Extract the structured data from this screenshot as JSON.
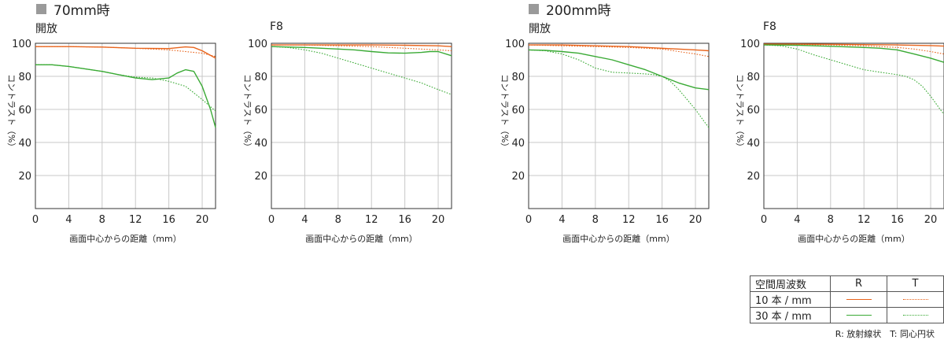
{
  "groups": [
    {
      "label": "70mm時"
    },
    {
      "label": "200mm時"
    }
  ],
  "colors": {
    "r10": "#e8641c",
    "t10": "#e8641c",
    "r30": "#3aaa35",
    "t30": "#3aaa35"
  },
  "axis": {
    "ylabel": "コントラスト（%）",
    "xlabel": "画面中心からの距離（mm）",
    "yticks": [
      "20",
      "40",
      "60",
      "80",
      "100"
    ],
    "xticks": [
      "0",
      "4",
      "8",
      "12",
      "16",
      "20"
    ]
  },
  "chart_data": [
    {
      "type": "line",
      "group": "70mm時",
      "title": "開放",
      "xlabel": "画面中心からの距離（mm）",
      "ylabel": "コントラスト（%）",
      "xlim": [
        0,
        21.6
      ],
      "ylim": [
        0,
        100
      ],
      "grid": true,
      "series": [
        {
          "name": "10本/mm R",
          "style": "solid",
          "color": "#e8641c",
          "x": [
            0,
            4,
            8,
            12,
            16,
            18,
            19,
            20,
            21.6
          ],
          "y": [
            98,
            98,
            97.7,
            97,
            96.8,
            97.8,
            97.5,
            95.5,
            91
          ]
        },
        {
          "name": "10本/mm T",
          "style": "dotted",
          "color": "#e8641c",
          "x": [
            0,
            4,
            8,
            12,
            16,
            18,
            20,
            21.6
          ],
          "y": [
            98,
            98,
            97.7,
            97,
            96,
            95,
            94,
            92
          ]
        },
        {
          "name": "30本/mm R",
          "style": "solid",
          "color": "#3aaa35",
          "x": [
            0,
            2,
            4,
            6,
            8,
            10,
            12,
            14,
            16,
            17,
            18,
            19,
            20,
            21,
            21.6
          ],
          "y": [
            87,
            87,
            86,
            84.5,
            83,
            81,
            79,
            78,
            79,
            82,
            84,
            83,
            74,
            60,
            49
          ]
        },
        {
          "name": "30本/mm T",
          "style": "dotted",
          "color": "#3aaa35",
          "x": [
            0,
            2,
            4,
            6,
            8,
            10,
            12,
            14,
            16,
            18,
            20,
            21.6
          ],
          "y": [
            87,
            87,
            86,
            84.5,
            83,
            81,
            79.5,
            79,
            77,
            74,
            66,
            59
          ]
        }
      ]
    },
    {
      "type": "line",
      "group": "70mm時",
      "title": "F8",
      "xlabel": "画面中心からの距離（mm）",
      "ylabel": "コントラスト（%）",
      "xlim": [
        0,
        21.6
      ],
      "ylim": [
        0,
        100
      ],
      "grid": true,
      "series": [
        {
          "name": "10本/mm R",
          "style": "solid",
          "color": "#e8641c",
          "x": [
            0,
            4,
            8,
            12,
            16,
            20,
            21.6
          ],
          "y": [
            99,
            99,
            99,
            99,
            98.8,
            98.5,
            98
          ]
        },
        {
          "name": "10本/mm T",
          "style": "dotted",
          "color": "#e8641c",
          "x": [
            0,
            4,
            8,
            12,
            16,
            20,
            21.6
          ],
          "y": [
            99,
            99,
            98.5,
            98,
            97,
            96,
            95.5
          ]
        },
        {
          "name": "30本/mm R",
          "style": "solid",
          "color": "#3aaa35",
          "x": [
            0,
            4,
            8,
            10,
            12,
            14,
            16,
            18,
            19,
            20,
            21.6
          ],
          "y": [
            98,
            97.5,
            96.5,
            96,
            95,
            94.2,
            94,
            94.5,
            95,
            95,
            92.5
          ]
        },
        {
          "name": "30本/mm T",
          "style": "dotted",
          "color": "#3aaa35",
          "x": [
            0,
            2,
            4,
            6,
            8,
            10,
            12,
            14,
            16,
            18,
            20,
            21.6
          ],
          "y": [
            98,
            97.5,
            96,
            94,
            91,
            88,
            85,
            82,
            79,
            76,
            72,
            69
          ]
        }
      ]
    },
    {
      "type": "line",
      "group": "200mm時",
      "title": "開放",
      "xlabel": "画面中心からの距離（mm）",
      "ylabel": "コントラスト（%）",
      "xlim": [
        0,
        21.6
      ],
      "ylim": [
        0,
        100
      ],
      "grid": true,
      "series": [
        {
          "name": "10本/mm R",
          "style": "solid",
          "color": "#e8641c",
          "x": [
            0,
            4,
            8,
            12,
            16,
            20,
            21.6
          ],
          "y": [
            99,
            99,
            98.5,
            98,
            97,
            96,
            95.5
          ]
        },
        {
          "name": "10本/mm T",
          "style": "dotted",
          "color": "#e8641c",
          "x": [
            0,
            4,
            8,
            12,
            16,
            18,
            20,
            21.6
          ],
          "y": [
            99,
            98.5,
            98,
            97.5,
            96.5,
            95,
            93.5,
            92
          ]
        },
        {
          "name": "30本/mm R",
          "style": "solid",
          "color": "#3aaa35",
          "x": [
            0,
            2,
            4,
            6,
            8,
            10,
            12,
            14,
            16,
            18,
            20,
            21.6
          ],
          "y": [
            96,
            95.7,
            95,
            94,
            92,
            90,
            87,
            84,
            80,
            76,
            73,
            72
          ]
        },
        {
          "name": "30本/mm T",
          "style": "dotted",
          "color": "#3aaa35",
          "x": [
            0,
            2,
            4,
            6,
            8,
            10,
            12,
            14,
            15,
            16,
            17,
            18,
            19,
            20,
            21,
            21.6
          ],
          "y": [
            96,
            95.5,
            93.5,
            90,
            85,
            82.5,
            82,
            81.5,
            81,
            80,
            77,
            72,
            66,
            60,
            53,
            49
          ]
        }
      ]
    },
    {
      "type": "line",
      "group": "200mm時",
      "title": "F8",
      "xlabel": "画面中心からの距離（mm）",
      "ylabel": "コントラスト（%）",
      "xlim": [
        0,
        21.6
      ],
      "ylim": [
        0,
        100
      ],
      "grid": true,
      "series": [
        {
          "name": "10本/mm R",
          "style": "solid",
          "color": "#e8641c",
          "x": [
            0,
            4,
            8,
            12,
            16,
            20,
            21.6
          ],
          "y": [
            99.5,
            99.5,
            99.4,
            99.2,
            99,
            98.6,
            98.3
          ]
        },
        {
          "name": "10本/mm T",
          "style": "dotted",
          "color": "#e8641c",
          "x": [
            0,
            4,
            8,
            12,
            16,
            18,
            20,
            21.6
          ],
          "y": [
            99.5,
            99.3,
            99,
            98.5,
            97.5,
            96.5,
            95,
            93.5
          ]
        },
        {
          "name": "30本/mm R",
          "style": "solid",
          "color": "#3aaa35",
          "x": [
            0,
            4,
            8,
            12,
            14,
            16,
            18,
            20,
            21.6
          ],
          "y": [
            99,
            98.8,
            98.2,
            97.5,
            97,
            96,
            93.5,
            91,
            88.5
          ]
        },
        {
          "name": "30本/mm T",
          "style": "dotted",
          "color": "#3aaa35",
          "x": [
            0,
            2,
            4,
            6,
            8,
            10,
            12,
            14,
            16,
            17,
            18,
            19,
            20,
            21,
            21.6
          ],
          "y": [
            99,
            98.5,
            96.5,
            93,
            90,
            87,
            84,
            82.5,
            81,
            80,
            78,
            74,
            68,
            61,
            57
          ]
        }
      ]
    }
  ],
  "legend": {
    "header": {
      "label": "空間周波数",
      "r": "R",
      "t": "T"
    },
    "rows": [
      {
        "label": "10 本 / mm"
      },
      {
        "label": "30 本 / mm"
      }
    ],
    "footnote": "R: 放射線状　T: 同心円状"
  }
}
